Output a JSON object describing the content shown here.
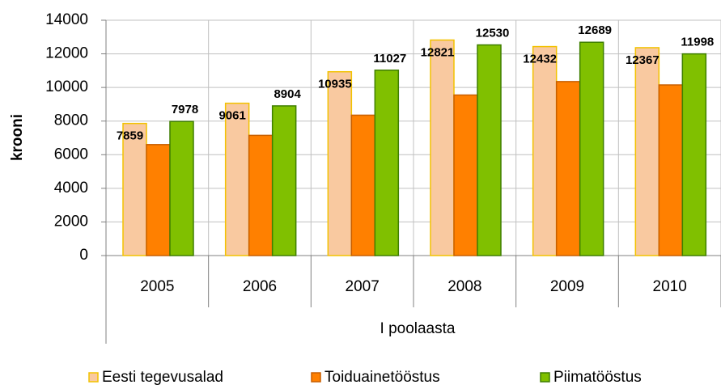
{
  "chart_data": {
    "type": "bar",
    "ylabel": "krooni",
    "xlabel": "I poolaasta",
    "categories": [
      "2005",
      "2006",
      "2007",
      "2008",
      "2009",
      "2010"
    ],
    "series": [
      {
        "name": "Eesti tegevusalad",
        "color": "#f9c9a0",
        "border": "#f2c200",
        "values": [
          7859,
          9061,
          10935,
          12821,
          12432,
          12367
        ],
        "labels": true
      },
      {
        "name": "Toiduainetööstus",
        "color": "#ff8000",
        "border": "#c85f00",
        "values": [
          6600,
          7150,
          8350,
          9550,
          10350,
          10150
        ],
        "labels": false
      },
      {
        "name": "Piimatööstus",
        "color": "#80c000",
        "border": "#3f7f00",
        "values": [
          7978,
          8904,
          11027,
          12530,
          12689,
          11998
        ],
        "labels": true
      }
    ],
    "ylim": [
      0,
      14000
    ],
    "yticks": [
      0,
      2000,
      4000,
      6000,
      8000,
      10000,
      12000,
      14000
    ],
    "grid": true,
    "legend": "bottom"
  }
}
